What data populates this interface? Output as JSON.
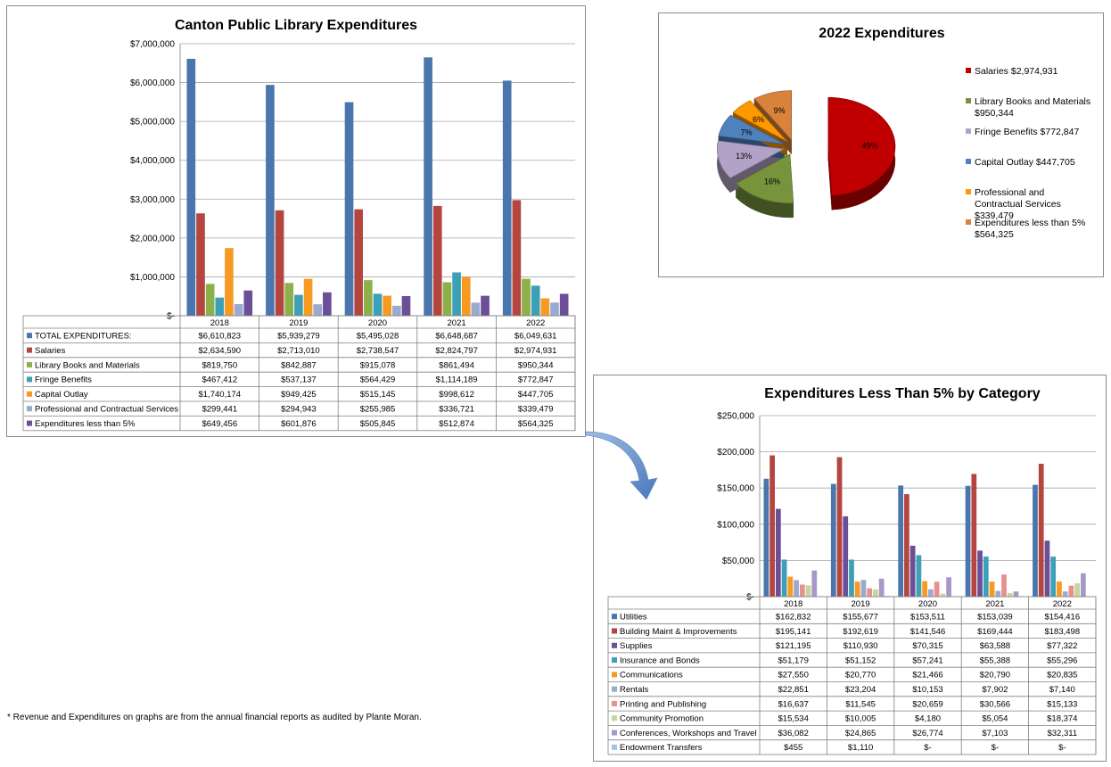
{
  "colors": {
    "blue": "#4a76ad",
    "red": "#b5463f",
    "green": "#8db14a",
    "teal": "#3ea0b6",
    "orange": "#f79a21",
    "lavender": "#99a9cf",
    "purple": "#6b4f97",
    "pie_red": "#c00000",
    "pie_green": "#77933c",
    "pie_lav": "#b3a2c7",
    "pie_blue": "#4f81bd",
    "pie_orange": "#ff9900",
    "pie_brown": "#d9823b",
    "salmon": "#e8908c",
    "light_green": "#c3d69b",
    "light_purple": "#a898c8",
    "light_blue": "#9dc3e6"
  },
  "footnote": "* Revenue and Expenditures on graphs are from the annual financial reports as audited by Plante Moran.",
  "chart_data": [
    {
      "type": "bar",
      "title": "Canton Public Library Expenditures",
      "categories": [
        "2018",
        "2019",
        "2020",
        "2021",
        "2022"
      ],
      "ylim": [
        0,
        7000000
      ],
      "ytick_labels": [
        "$-",
        "$1,000,000",
        "$2,000,000",
        "$3,000,000",
        "$4,000,000",
        "$5,000,000",
        "$6,000,000",
        "$7,000,000"
      ],
      "grid": true,
      "legend": "table-below",
      "series": [
        {
          "name": "TOTAL EXPENDITURES:",
          "color": "#4a76ad",
          "values": [
            6610823,
            5939279,
            5495028,
            6648687,
            6049631
          ],
          "labels": [
            "$6,610,823",
            "$5,939,279",
            "$5,495,028",
            "$6,648,687",
            "$6,049,631"
          ]
        },
        {
          "name": "Salaries",
          "color": "#b5463f",
          "values": [
            2634590,
            2713010,
            2738547,
            2824797,
            2974931
          ],
          "labels": [
            "$2,634,590",
            "$2,713,010",
            "$2,738,547",
            "$2,824,797",
            "$2,974,931"
          ]
        },
        {
          "name": "Library Books and Materials",
          "color": "#8db14a",
          "values": [
            819750,
            842887,
            915078,
            861494,
            950344
          ],
          "labels": [
            "$819,750",
            "$842,887",
            "$915,078",
            "$861,494",
            "$950,344"
          ]
        },
        {
          "name": "Fringe Benefits",
          "color": "#3ea0b6",
          "values": [
            467412,
            537137,
            564429,
            1114189,
            772847
          ],
          "labels": [
            "$467,412",
            "$537,137",
            "$564,429",
            "$1,114,189",
            "$772,847"
          ]
        },
        {
          "name": "Capital Outlay",
          "color": "#f79a21",
          "values": [
            1740174,
            949425,
            515145,
            998612,
            447705
          ],
          "labels": [
            "$1,740,174",
            "$949,425",
            "$515,145",
            "$998,612",
            "$447,705"
          ]
        },
        {
          "name": "Professional and Contractual Services",
          "color": "#99a9cf",
          "values": [
            299441,
            294943,
            255985,
            336721,
            339479
          ],
          "labels": [
            "$299,441",
            "$294,943",
            "$255,985",
            "$336,721",
            "$339,479"
          ]
        },
        {
          "name": "Expenditures less than 5%",
          "color": "#6b4f97",
          "values": [
            649456,
            601876,
            505845,
            512874,
            564325
          ],
          "labels": [
            "$649,456",
            "$601,876",
            "$505,845",
            "$512,874",
            "$564,325"
          ]
        }
      ]
    },
    {
      "type": "pie",
      "title": "2022 Expenditures",
      "legend": "right",
      "slices": [
        {
          "name": "Salaries",
          "value_label": "$2,974,931",
          "value": 2974931,
          "pct_label": "49%",
          "color": "#c00000"
        },
        {
          "name": "Library Books and Materials",
          "value_label": "$950,344",
          "value": 950344,
          "pct_label": "16%",
          "color": "#77933c"
        },
        {
          "name": "Fringe Benefits",
          "value_label": "$772,847",
          "value": 772847,
          "pct_label": "13%",
          "color": "#b3a2c7"
        },
        {
          "name": "Capital Outlay",
          "value_label": "$447,705",
          "value": 447705,
          "pct_label": "7%",
          "color": "#4f81bd"
        },
        {
          "name": "Professional and Contractual Services",
          "value_label": "$339,479",
          "value": 339479,
          "pct_label": "6%",
          "color": "#ff9900"
        },
        {
          "name": "Expenditures less than 5%",
          "value_label": "$564,325",
          "value": 564325,
          "pct_label": "9%",
          "color": "#d9823b"
        }
      ]
    },
    {
      "type": "bar",
      "title": "Expenditures Less Than 5% by Category",
      "categories": [
        "2018",
        "2019",
        "2020",
        "2021",
        "2022"
      ],
      "ylim": [
        0,
        250000
      ],
      "ytick_labels": [
        "$-",
        "$50,000",
        "$100,000",
        "$150,000",
        "$200,000",
        "$250,000"
      ],
      "grid": true,
      "legend": "table-below",
      "series": [
        {
          "name": "Utilities",
          "color": "#4a76ad",
          "values": [
            162832,
            155677,
            153511,
            153039,
            154416
          ],
          "labels": [
            "$162,832",
            "$155,677",
            "$153,511",
            "$153,039",
            "$154,416"
          ]
        },
        {
          "name": "Building Maint & Improvements",
          "color": "#b5463f",
          "values": [
            195141,
            192619,
            141546,
            169444,
            183498
          ],
          "labels": [
            "$195,141",
            "$192,619",
            "$141,546",
            "$169,444",
            "$183,498"
          ]
        },
        {
          "name": "Supplies",
          "color": "#6b4f97",
          "values": [
            121195,
            110930,
            70315,
            63588,
            77322
          ],
          "labels": [
            "$121,195",
            "$110,930",
            "$70,315",
            "$63,588",
            "$77,322"
          ]
        },
        {
          "name": "Insurance and Bonds",
          "color": "#3ea0b6",
          "values": [
            51179,
            51152,
            57241,
            55388,
            55296
          ],
          "labels": [
            "$51,179",
            "$51,152",
            "$57,241",
            "$55,388",
            "$55,296"
          ]
        },
        {
          "name": "Communications",
          "color": "#f79a21",
          "values": [
            27550,
            20770,
            21466,
            20790,
            20835
          ],
          "labels": [
            "$27,550",
            "$20,770",
            "$21,466",
            "$20,790",
            "$20,835"
          ]
        },
        {
          "name": "Rentals",
          "color": "#99a9cf",
          "values": [
            22851,
            23204,
            10153,
            7902,
            7140
          ],
          "labels": [
            "$22,851",
            "$23,204",
            "$10,153",
            "$7,902",
            "$7,140"
          ]
        },
        {
          "name": "Printing and Publishing",
          "color": "#e8908c",
          "values": [
            16637,
            11545,
            20659,
            30566,
            15133
          ],
          "labels": [
            "$16,637",
            "$11,545",
            "$20,659",
            "$30,566",
            "$15,133"
          ]
        },
        {
          "name": "Community Promotion",
          "color": "#c3d69b",
          "values": [
            15534,
            10005,
            4180,
            5054,
            18374
          ],
          "labels": [
            "$15,534",
            "$10,005",
            "$4,180",
            "$5,054",
            "$18,374"
          ]
        },
        {
          "name": "Conferences, Workshops and Travel",
          "color": "#a898c8",
          "values": [
            36082,
            24865,
            26774,
            7103,
            32311
          ],
          "labels": [
            "$36,082",
            "$24,865",
            "$26,774",
            "$7,103",
            "$32,311"
          ]
        },
        {
          "name": "Endowment Transfers",
          "color": "#9dc3e6",
          "values": [
            455,
            1110,
            0,
            0,
            0
          ],
          "labels": [
            "$455",
            "$1,110",
            "$-",
            "$-",
            "$-"
          ]
        }
      ]
    }
  ]
}
